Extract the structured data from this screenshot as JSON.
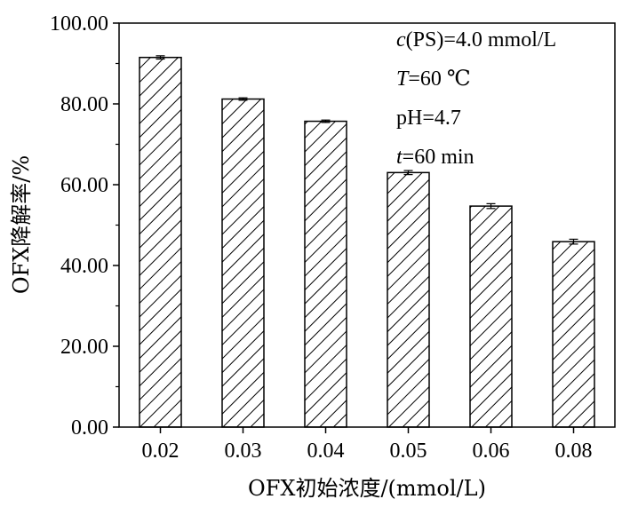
{
  "chart_data": {
    "type": "bar",
    "categories": [
      "0.02",
      "0.03",
      "0.04",
      "0.05",
      "0.06",
      "0.08"
    ],
    "values": [
      91.5,
      81.2,
      75.7,
      63.0,
      54.7,
      45.9
    ],
    "errors": [
      0.4,
      0.3,
      0.3,
      0.5,
      0.6,
      0.6
    ],
    "xlabel": "OFX初始浓度/(mmol/L)",
    "ylabel": "OFX降解率/%",
    "ylim": [
      0,
      100
    ],
    "yticks": [
      "0.00",
      "20.00",
      "40.00",
      "60.00",
      "80.00",
      "100.00"
    ],
    "grid": false,
    "bar_fill": "diagonal-hatch",
    "colors": {
      "bar_stroke": "#000000",
      "hatch": "#000000",
      "background": "#ffffff"
    },
    "annotations": [
      {
        "italic": "c",
        "rest": "(PS)=4.0 mmol/L"
      },
      {
        "italic": "T",
        "rest": "=60 ℃"
      },
      {
        "italic": "",
        "rest": "pH=4.7"
      },
      {
        "italic": "t",
        "rest": "=60 min"
      }
    ]
  }
}
